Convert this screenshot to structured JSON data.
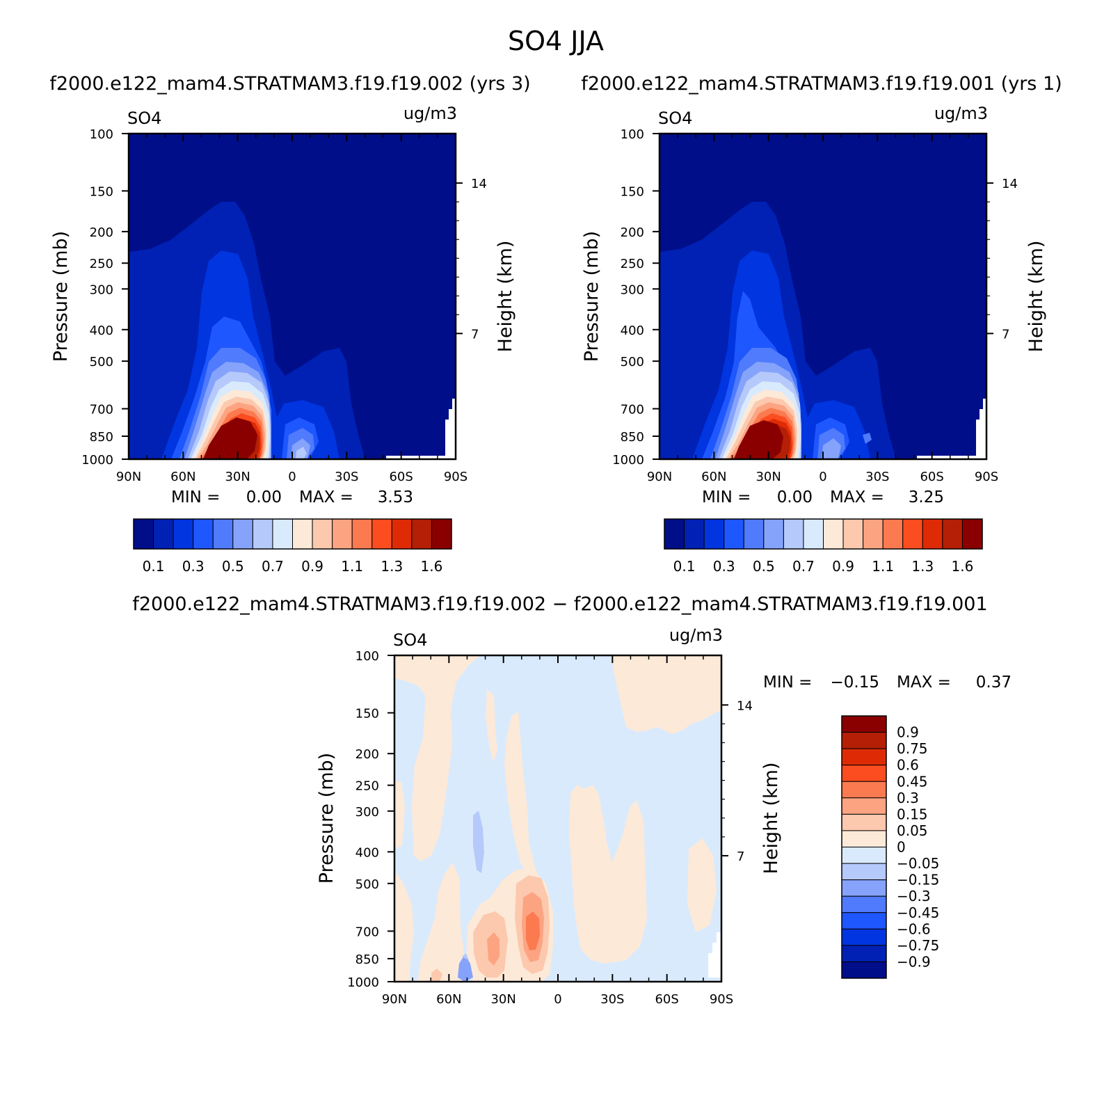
{
  "figure": {
    "title": "SO4 JJA",
    "case1_title": "f2000.e122_mam4.STRATMAM3.f19.f19.002 (yrs 3)",
    "case2_title": "f2000.e122_mam4.STRATMAM3.f19.f19.001 (yrs 1)",
    "diff_title": "f2000.e122_mam4.STRATMAM3.f19.f19.002 − f2000.e122_mam4.STRATMAM3.f19.f19.001"
  },
  "abs_colors": [
    "#000e8a",
    "#0021b4",
    "#0035e0",
    "#1f57fe",
    "#4f7bfc",
    "#86a3fb",
    "#b5c9fb",
    "#d9eafd",
    "#fde9d8",
    "#fcc9ae",
    "#fca482",
    "#fb7a4f",
    "#fb4d20",
    "#df2b05",
    "#b41f06",
    "#8a0000"
  ],
  "abs_tick_labels": [
    "0.1",
    "0.3",
    "0.5",
    "0.7",
    "0.9",
    "1.1",
    "1.3",
    "1.6"
  ],
  "diff_colors": [
    "#000e8a",
    "#0021b4",
    "#0035e0",
    "#1f57fe",
    "#4f7bfc",
    "#86a3fb",
    "#b5c9fb",
    "#d9eafd",
    "#fde9d8",
    "#fcc9ae",
    "#fca482",
    "#fb7a4f",
    "#fb4d20",
    "#df2b05",
    "#b41f06",
    "#8a0000"
  ],
  "diff_tick_labels": [
    "0.9",
    "0.75",
    "0.6",
    "0.45",
    "0.3",
    "0.15",
    "0.05",
    "0",
    "−0.05",
    "−0.15",
    "−0.3",
    "−0.45",
    "−0.6",
    "−0.75",
    "−0.9"
  ],
  "chart_data": [
    {
      "type": "heatmap",
      "panel": "case1",
      "variable_label": "SO4",
      "units_label": "ug/m3",
      "ylabel": "Pressure (mb)",
      "right_label": "Height (km)",
      "x_ticks": [
        "90N",
        "60N",
        "30N",
        "0",
        "30S",
        "60S",
        "90S"
      ],
      "y_ticks": [
        "100",
        "150",
        "200",
        "250",
        "300",
        "400",
        "500",
        "700",
        "850",
        "1000"
      ],
      "right_ticks": [
        "14",
        "7"
      ],
      "min_label": "MIN =",
      "min_value": "0.00",
      "max_label": "MAX =",
      "max_value": "3.53"
    },
    {
      "type": "heatmap",
      "panel": "case2",
      "variable_label": "SO4",
      "units_label": "ug/m3",
      "ylabel": "Pressure (mb)",
      "right_label": "Height (km)",
      "x_ticks": [
        "90N",
        "60N",
        "30N",
        "0",
        "30S",
        "60S",
        "90S"
      ],
      "y_ticks": [
        "100",
        "150",
        "200",
        "250",
        "300",
        "400",
        "500",
        "700",
        "850",
        "1000"
      ],
      "right_ticks": [
        "14",
        "7"
      ],
      "min_label": "MIN =",
      "min_value": "0.00",
      "max_label": "MAX =",
      "max_value": "3.25"
    },
    {
      "type": "heatmap",
      "panel": "diff",
      "variable_label": "SO4",
      "units_label": "ug/m3",
      "ylabel": "Pressure (mb)",
      "right_label": "Height (km)",
      "x_ticks": [
        "90N",
        "60N",
        "30N",
        "0",
        "30S",
        "60S",
        "90S"
      ],
      "y_ticks": [
        "100",
        "150",
        "200",
        "250",
        "300",
        "400",
        "500",
        "700",
        "850",
        "1000"
      ],
      "right_ticks": [
        "14",
        "7"
      ],
      "min_label": "MIN =",
      "min_value": "−0.15",
      "max_label": "MAX =",
      "max_value": "0.37"
    }
  ]
}
